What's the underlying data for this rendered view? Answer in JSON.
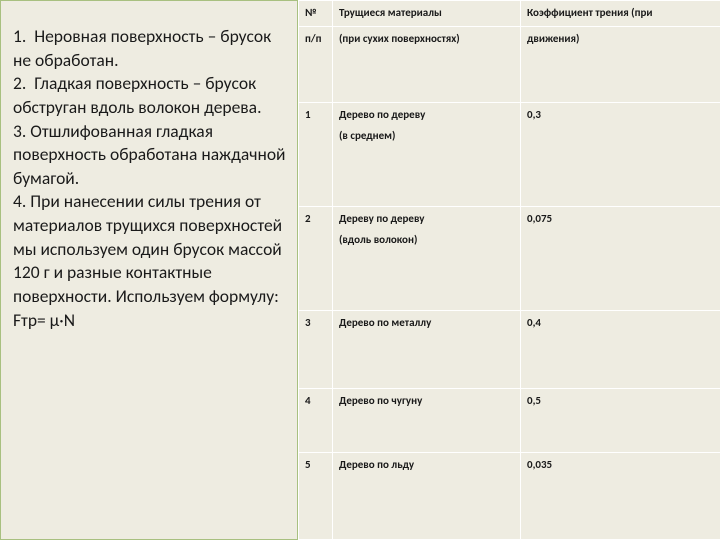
{
  "colors": {
    "background": "#eeece1",
    "left_border": "#a8c080",
    "cell_border": "#ffffff",
    "text": "#1a1a1a"
  },
  "left": {
    "text": "1.  Неровная поверхность – брусок не обработан.\n2.  Гладкая поверхность – брусок обструган вдоль волокон дерева.\n3. Отшлифованная гладкая поверхность обработана наждачной бумагой.\n4. При нанесении силы трения от материалов трущихся поверхностей мы используем один брусок массой 120 г и разные контактные поверхности. Используем формулу:\nFтр= µ·N"
  },
  "table": {
    "header": {
      "col1": "№",
      "col2": "Трущиеся      материалы",
      "col3": "Коэффициент    трения    (при"
    },
    "subheader": {
      "col1": "п/п",
      "col2": "(при сухих поверхностях)",
      "col3": "движения)"
    },
    "rows": [
      {
        "n": "1",
        "mat": "Дерево по дереву",
        "note": "(в среднем)",
        "k": "0,3"
      },
      {
        "n": "2",
        "mat": "Дереву по дереву",
        "note": "(вдоль волокон)",
        "k": "0,075"
      },
      {
        "n": "3",
        "mat": "Дерево по металлу",
        "note": "",
        "k": "0,4"
      },
      {
        "n": "4",
        "mat": "Дерево по чугуну",
        "note": "",
        "k": "0,5"
      },
      {
        "n": "5",
        "mat": "Дерево по льду",
        "note": "",
        "k": "0,035"
      }
    ]
  }
}
